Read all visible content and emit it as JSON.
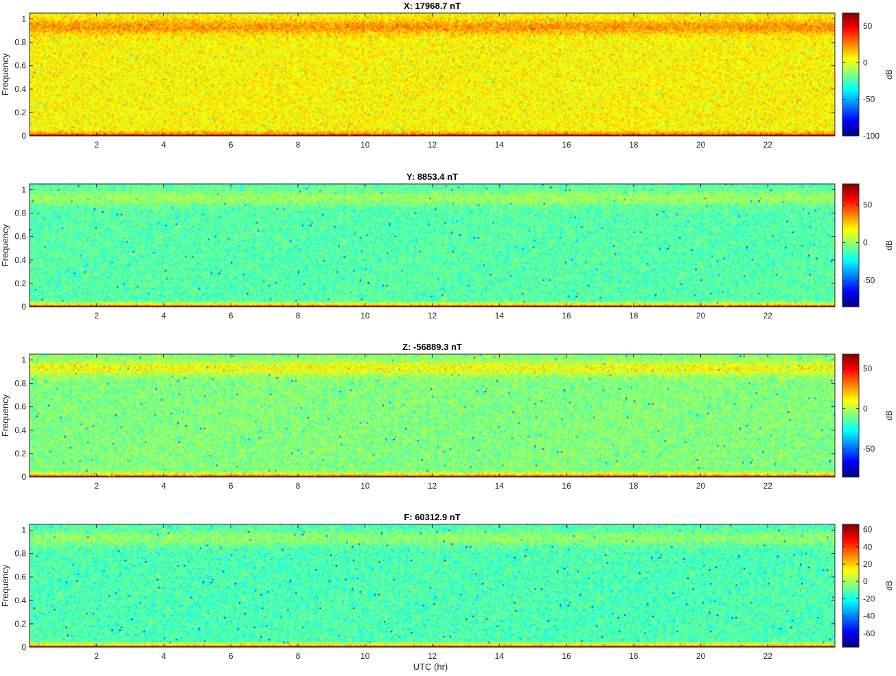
{
  "figure": {
    "xlabel": "UTC (hr)"
  },
  "chart_data": [
    {
      "type": "heatmap",
      "title": "X: 17968.7 nT",
      "xlabel": "",
      "ylabel": "Frequency",
      "xlim": [
        0,
        24
      ],
      "ylim": [
        0,
        1.05
      ],
      "xticks": [
        2,
        4,
        6,
        8,
        10,
        12,
        14,
        16,
        18,
        20,
        22
      ],
      "yticks": [
        0,
        0.2,
        0.4,
        0.6,
        0.8,
        1
      ],
      "colorbar": {
        "label": "dB",
        "range": [
          -100,
          68
        ],
        "ticks": [
          -100,
          -50,
          0,
          50
        ]
      },
      "colormap": "jet",
      "spectral_profile": {
        "low_band_db": 62,
        "interior_db": 6,
        "top_band_db": 23,
        "noise_db": 10
      }
    },
    {
      "type": "heatmap",
      "title": "Y: 8853.4 nT",
      "xlabel": "",
      "ylabel": "Frequency",
      "xlim": [
        0,
        24
      ],
      "ylim": [
        0,
        1.05
      ],
      "xticks": [
        2,
        4,
        6,
        8,
        10,
        12,
        14,
        16,
        18,
        20,
        22
      ],
      "yticks": [
        0,
        0.2,
        0.4,
        0.6,
        0.8,
        1
      ],
      "colorbar": {
        "label": "dB",
        "range": [
          -85,
          78
        ],
        "ticks": [
          -50,
          0,
          50
        ]
      },
      "colormap": "jet",
      "spectral_profile": {
        "low_band_db": 65,
        "interior_db": -10,
        "top_band_db": 2,
        "noise_db": 11
      }
    },
    {
      "type": "heatmap",
      "title": "Z: -56889.3 nT",
      "xlabel": "",
      "ylabel": "Frequency",
      "xlim": [
        0,
        24
      ],
      "ylim": [
        0,
        1.05
      ],
      "xticks": [
        2,
        4,
        6,
        8,
        10,
        12,
        14,
        16,
        18,
        20,
        22
      ],
      "yticks": [
        0,
        0.2,
        0.4,
        0.6,
        0.8,
        1
      ],
      "colorbar": {
        "label": "dB",
        "range": [
          -85,
          68
        ],
        "ticks": [
          -50,
          0,
          50
        ]
      },
      "colormap": "jet",
      "spectral_profile": {
        "low_band_db": 58,
        "interior_db": -8,
        "top_band_db": 10,
        "noise_db": 11
      }
    },
    {
      "type": "heatmap",
      "title": "F: 60312.9 nT",
      "xlabel": "UTC (hr)",
      "ylabel": "Frequency",
      "xlim": [
        0,
        24
      ],
      "ylim": [
        0,
        1.05
      ],
      "xticks": [
        2,
        4,
        6,
        8,
        10,
        12,
        14,
        16,
        18,
        20,
        22
      ],
      "yticks": [
        0,
        0.2,
        0.4,
        0.6,
        0.8,
        1
      ],
      "colorbar": {
        "label": "dB",
        "range": [
          -76,
          66
        ],
        "ticks": [
          -60,
          -40,
          -20,
          0,
          20,
          40,
          60
        ]
      },
      "colormap": "jet",
      "spectral_profile": {
        "low_band_db": 55,
        "interior_db": -12,
        "top_band_db": -2,
        "noise_db": 10
      }
    }
  ]
}
